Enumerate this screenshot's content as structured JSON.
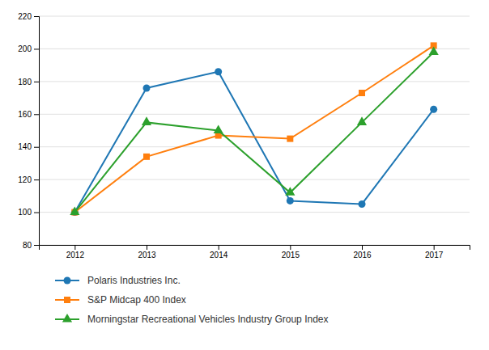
{
  "chart_data": {
    "type": "line",
    "x": [
      2012,
      2013,
      2014,
      2015,
      2016,
      2017
    ],
    "xlim": [
      2011.5,
      2017.5
    ],
    "xticks": [
      2012,
      2013,
      2014,
      2015,
      2016,
      2017
    ],
    "ylim": [
      80,
      220
    ],
    "yticks": [
      80,
      100,
      120,
      140,
      160,
      180,
      200,
      220
    ],
    "grid": true,
    "legend": "bottom",
    "series": [
      {
        "name": "Polaris Industries Inc.",
        "marker": "circle",
        "values": [
          100,
          176,
          186,
          107,
          105,
          163
        ]
      },
      {
        "name": "S&P Midcap 400 Index",
        "marker": "square",
        "values": [
          100,
          134,
          147,
          145,
          173,
          202
        ]
      },
      {
        "name": "Morningstar Recreational Vehicles Industry Group Index",
        "marker": "triangle",
        "values": [
          100,
          155,
          150,
          112,
          155,
          198
        ]
      }
    ]
  }
}
